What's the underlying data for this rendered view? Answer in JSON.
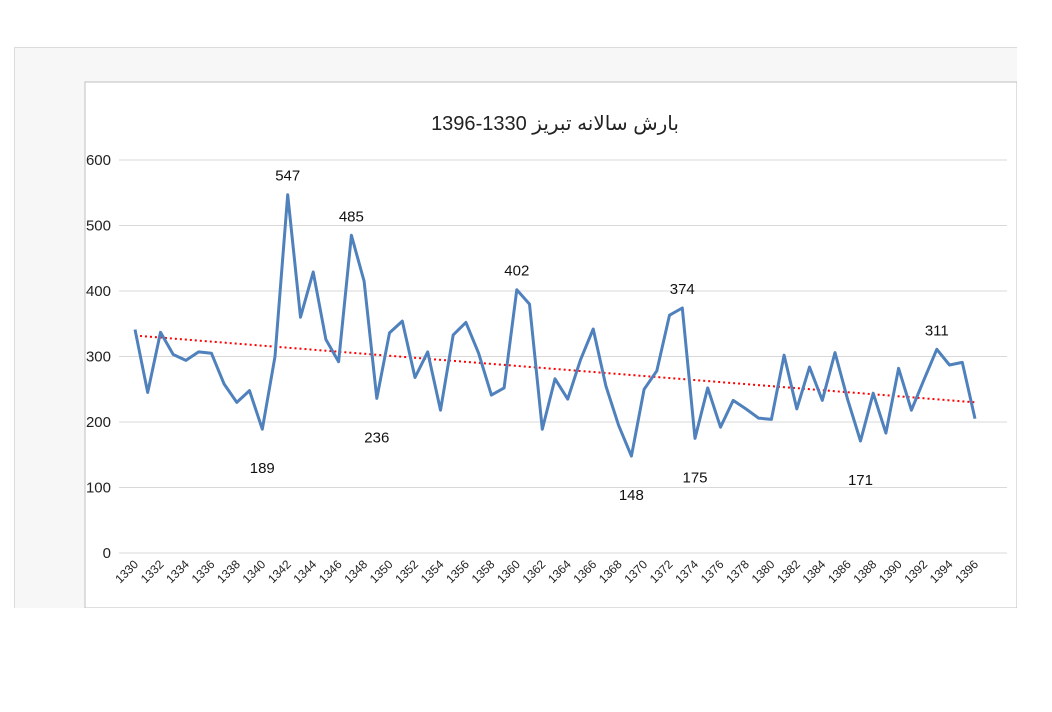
{
  "chart_data": {
    "type": "line",
    "title": "بارش سالانه تبریز 1330-1396",
    "xlabel": "",
    "ylabel": "",
    "ylim": [
      0,
      600
    ],
    "yticks": [
      "0",
      "100",
      "200",
      "300",
      "400",
      "500",
      "600"
    ],
    "xtick_labels": [
      "1330",
      "1332",
      "1334",
      "1336",
      "1338",
      "1340",
      "1342",
      "1344",
      "1346",
      "1348",
      "1350",
      "1352",
      "1354",
      "1356",
      "1358",
      "1360",
      "1362",
      "1364",
      "1366",
      "1368",
      "1370",
      "1372",
      "1374",
      "1376",
      "1378",
      "1380",
      "1382",
      "1384",
      "1386",
      "1388",
      "1390",
      "1392",
      "1394",
      "1396"
    ],
    "x": [
      1330,
      1331,
      1332,
      1333,
      1334,
      1335,
      1336,
      1337,
      1338,
      1339,
      1340,
      1341,
      1342,
      1343,
      1344,
      1345,
      1346,
      1347,
      1348,
      1349,
      1350,
      1351,
      1352,
      1353,
      1354,
      1355,
      1356,
      1357,
      1358,
      1359,
      1360,
      1361,
      1362,
      1363,
      1364,
      1365,
      1366,
      1367,
      1368,
      1369,
      1370,
      1371,
      1372,
      1373,
      1374,
      1375,
      1376,
      1377,
      1378,
      1379,
      1380,
      1381,
      1382,
      1383,
      1384,
      1385,
      1386,
      1387,
      1388,
      1389,
      1390,
      1391,
      1392,
      1393,
      1394,
      1395,
      1396
    ],
    "series": [
      {
        "name": "بارش سالانه",
        "color": "#4f81bd",
        "values": [
          341,
          245,
          337,
          303,
          294,
          307,
          305,
          258,
          230,
          248,
          189,
          300,
          547,
          360,
          429,
          326,
          292,
          485,
          415,
          236,
          336,
          354,
          268,
          307,
          218,
          333,
          352,
          305,
          241,
          252,
          402,
          380,
          189,
          266,
          235,
          295,
          342,
          255,
          195,
          148,
          250,
          278,
          363,
          374,
          175,
          252,
          192,
          233,
          220,
          206,
          204,
          302,
          220,
          284,
          233,
          306,
          234,
          171,
          244,
          183,
          282,
          218,
          265,
          311,
          287,
          291,
          205
        ]
      }
    ],
    "trendline": {
      "type": "linear",
      "color": "#ff0000",
      "start": {
        "x": 1330,
        "y": 332
      },
      "end": {
        "x": 1396,
        "y": 230
      }
    },
    "annotations": [
      {
        "text": "547",
        "x": 1342,
        "y": 547
      },
      {
        "text": "485",
        "x": 1347,
        "y": 485
      },
      {
        "text": "402",
        "x": 1360,
        "y": 402
      },
      {
        "text": "374",
        "x": 1373,
        "y": 374
      },
      {
        "text": "311",
        "x": 1393,
        "y": 311
      },
      {
        "text": "189",
        "x": 1340,
        "y": 189
      },
      {
        "text": "236",
        "x": 1349,
        "y": 236
      },
      {
        "text": "148",
        "x": 1369,
        "y": 148
      },
      {
        "text": "175",
        "x": 1374,
        "y": 175
      },
      {
        "text": "171",
        "x": 1387,
        "y": 171
      }
    ]
  }
}
